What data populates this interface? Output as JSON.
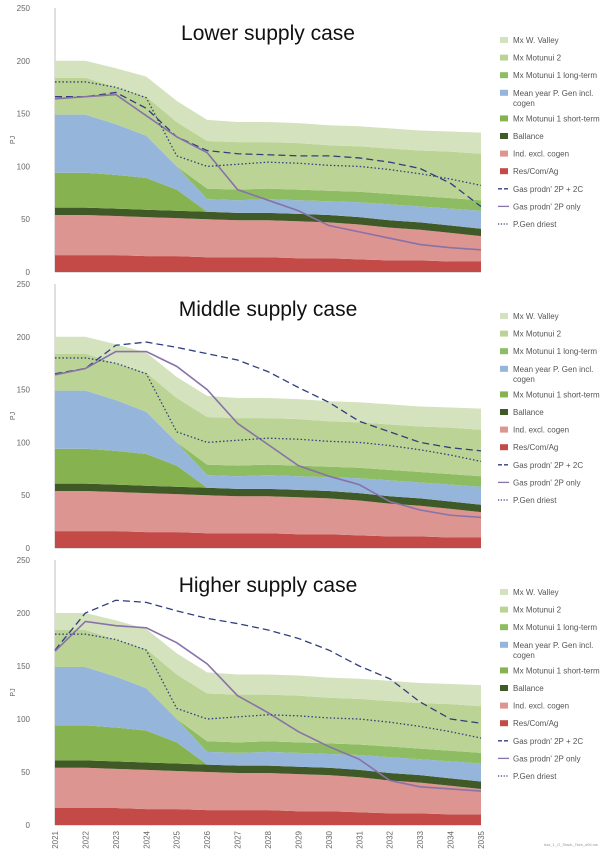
{
  "footnote": "Ass_1_G_Stack_Tsim_s06.ms",
  "colors": {
    "Mx W. Valley": "#d4e2bd",
    "Mx Motunui 2": "#bbd495",
    "Mx Motunui 1 long-term": "#8ebc62",
    "Mean year P. Gen incl. cogen": "#95b5da",
    "Mx Motunui 1 short-term": "#86b34f",
    "Ballance": "#3f5a26",
    "Ind. excl. cogen": "#dc9590",
    "Res/Com/Ag": "#c44a48",
    "Gas prodn' 2P + 2C": "#2f3f7e",
    "Gas prodn' 2P only": "#8872a8",
    "P.Gen driest": "#2f3f7e"
  },
  "legend_labels": {
    "Mx W. Valley": "Mx W. Valley",
    "Mx Motunui 2": "Mx Motunui 2",
    "Mx Motunui 1 long-term": "Mx Motunui 1 long-term",
    "Mean year P. Gen incl. cogen": "Mean year P. Gen incl.\ncogen",
    "Mx Motunui 1 short-term": "Mx Motunui 1 short-term",
    "Ballance": "Ballance",
    "Ind. excl. cogen": "Ind. excl. cogen",
    "Res/Com/Ag": "Res/Com/Ag",
    "Gas prodn' 2P + 2C": "Gas prodn' 2P + 2C",
    "Gas prodn' 2P only": "Gas prodn' 2P only",
    "P.Gen driest": "P.Gen driest"
  },
  "chart_data": [
    {
      "type": "area",
      "title": "Lower supply case",
      "ylabel": "PJ",
      "ylim": [
        0,
        250
      ],
      "yticks": [
        0,
        50,
        100,
        150,
        200,
        250
      ],
      "x": [
        "2021",
        "2022",
        "2023",
        "2024",
        "2025",
        "2026",
        "2027",
        "2028",
        "2029",
        "2030",
        "2031",
        "2032",
        "2033",
        "2034",
        "2035"
      ],
      "stacked_series": [
        {
          "name": "Res/Com/Ag",
          "values": [
            16,
            16,
            16,
            15,
            15,
            14,
            14,
            14,
            13,
            13,
            12,
            11,
            11,
            10,
            10
          ]
        },
        {
          "name": "Ind. excl. cogen",
          "values": [
            38,
            38,
            37,
            37,
            36,
            36,
            35,
            35,
            35,
            34,
            33,
            31,
            29,
            27,
            24
          ]
        },
        {
          "name": "Ballance",
          "values": [
            7,
            7,
            7,
            7,
            7,
            7,
            7,
            7,
            7,
            7,
            7,
            7,
            7,
            7,
            7
          ]
        },
        {
          "name": "Mx Motunui 1 short-term",
          "values": [
            33,
            33,
            32,
            30,
            20,
            0,
            0,
            0,
            0,
            0,
            0,
            0,
            0,
            0,
            0
          ]
        },
        {
          "name": "Mean year P. Gen incl. cogen",
          "values": [
            55,
            55,
            48,
            40,
            22,
            12,
            12,
            13,
            13,
            13,
            14,
            15,
            15,
            16,
            17
          ]
        },
        {
          "name": "Mx Motunui 1 long-term",
          "values": [
            0,
            0,
            0,
            0,
            0,
            10,
            10,
            10,
            10,
            10,
            10,
            10,
            10,
            10,
            10
          ]
        },
        {
          "name": "Mx Motunui 2",
          "values": [
            35,
            35,
            35,
            37,
            42,
            45,
            45,
            44,
            44,
            43,
            43,
            43,
            43,
            44,
            44
          ]
        },
        {
          "name": "Mx W. Valley",
          "values": [
            16,
            16,
            18,
            19,
            20,
            20,
            19,
            19,
            19,
            19,
            19,
            19,
            19,
            19,
            20
          ]
        }
      ],
      "line_series": [
        {
          "name": "Gas prodn' 2P + 2C",
          "dash": "dashed",
          "values": [
            166,
            166,
            170,
            155,
            128,
            115,
            112,
            111,
            110,
            110,
            108,
            104,
            98,
            84,
            62
          ]
        },
        {
          "name": "Gas prodn' 2P only",
          "dash": "solid",
          "values": [
            164,
            166,
            168,
            148,
            128,
            113,
            78,
            68,
            58,
            44,
            38,
            32,
            26,
            23,
            21
          ]
        },
        {
          "name": "P.Gen driest",
          "dash": "dotted",
          "values": [
            180,
            180,
            175,
            165,
            110,
            100,
            102,
            104,
            103,
            101,
            100,
            97,
            93,
            88,
            82
          ]
        }
      ]
    },
    {
      "type": "area",
      "title": "Middle supply case",
      "ylabel": "PJ",
      "ylim": [
        0,
        250
      ],
      "yticks": [
        0,
        50,
        100,
        150,
        200,
        250
      ],
      "x": [
        "2021",
        "2022",
        "2023",
        "2024",
        "2025",
        "2026",
        "2027",
        "2028",
        "2029",
        "2030",
        "2031",
        "2032",
        "2033",
        "2034",
        "2035"
      ],
      "stacked_series": [
        {
          "name": "Res/Com/Ag",
          "values": [
            16,
            16,
            16,
            15,
            15,
            14,
            14,
            14,
            13,
            13,
            12,
            11,
            11,
            10,
            10
          ]
        },
        {
          "name": "Ind. excl. cogen",
          "values": [
            38,
            38,
            37,
            37,
            36,
            36,
            35,
            35,
            35,
            34,
            33,
            31,
            29,
            27,
            24
          ]
        },
        {
          "name": "Ballance",
          "values": [
            7,
            7,
            7,
            7,
            7,
            7,
            7,
            7,
            7,
            7,
            7,
            7,
            7,
            7,
            7
          ]
        },
        {
          "name": "Mx Motunui 1 short-term",
          "values": [
            33,
            33,
            32,
            30,
            20,
            0,
            0,
            0,
            0,
            0,
            0,
            0,
            0,
            0,
            0
          ]
        },
        {
          "name": "Mean year P. Gen incl. cogen",
          "values": [
            55,
            55,
            48,
            40,
            22,
            12,
            12,
            13,
            13,
            13,
            14,
            15,
            15,
            16,
            17
          ]
        },
        {
          "name": "Mx Motunui 1 long-term",
          "values": [
            0,
            0,
            0,
            0,
            0,
            10,
            10,
            10,
            10,
            10,
            10,
            10,
            10,
            10,
            10
          ]
        },
        {
          "name": "Mx Motunui 2",
          "values": [
            35,
            35,
            35,
            37,
            42,
            45,
            45,
            44,
            44,
            43,
            43,
            43,
            43,
            44,
            44
          ]
        },
        {
          "name": "Mx W. Valley",
          "values": [
            16,
            16,
            18,
            19,
            20,
            20,
            19,
            19,
            19,
            19,
            19,
            19,
            19,
            19,
            20
          ]
        }
      ],
      "line_series": [
        {
          "name": "Gas prodn' 2P + 2C",
          "dash": "dashed",
          "values": [
            165,
            170,
            192,
            195,
            190,
            184,
            178,
            167,
            152,
            138,
            120,
            110,
            100,
            95,
            92
          ]
        },
        {
          "name": "Gas prodn' 2P only",
          "dash": "solid",
          "values": [
            164,
            170,
            186,
            186,
            172,
            150,
            118,
            98,
            78,
            68,
            60,
            44,
            36,
            31,
            29
          ]
        },
        {
          "name": "P.Gen driest",
          "dash": "dotted",
          "values": [
            180,
            180,
            175,
            165,
            110,
            100,
            102,
            104,
            103,
            101,
            100,
            97,
            93,
            88,
            82
          ]
        }
      ]
    },
    {
      "type": "area",
      "title": "Higher supply case",
      "ylabel": "PJ",
      "ylim": [
        0,
        250
      ],
      "yticks": [
        0,
        50,
        100,
        150,
        200,
        250
      ],
      "x": [
        "2021",
        "2022",
        "2023",
        "2024",
        "2025",
        "2026",
        "2027",
        "2028",
        "2029",
        "2030",
        "2031",
        "2032",
        "2033",
        "2034",
        "2035"
      ],
      "stacked_series": [
        {
          "name": "Res/Com/Ag",
          "values": [
            16,
            16,
            16,
            15,
            15,
            14,
            14,
            14,
            13,
            13,
            12,
            11,
            11,
            10,
            10
          ]
        },
        {
          "name": "Ind. excl. cogen",
          "values": [
            38,
            38,
            37,
            37,
            36,
            36,
            35,
            35,
            35,
            34,
            33,
            31,
            29,
            27,
            24
          ]
        },
        {
          "name": "Ballance",
          "values": [
            7,
            7,
            7,
            7,
            7,
            7,
            7,
            7,
            7,
            7,
            7,
            7,
            7,
            7,
            7
          ]
        },
        {
          "name": "Mx Motunui 1 short-term",
          "values": [
            33,
            33,
            32,
            30,
            20,
            0,
            0,
            0,
            0,
            0,
            0,
            0,
            0,
            0,
            0
          ]
        },
        {
          "name": "Mean year P. Gen incl. cogen",
          "values": [
            55,
            55,
            48,
            40,
            22,
            12,
            12,
            13,
            13,
            13,
            14,
            15,
            15,
            16,
            17
          ]
        },
        {
          "name": "Mx Motunui 1 long-term",
          "values": [
            0,
            0,
            0,
            0,
            0,
            10,
            10,
            10,
            10,
            10,
            10,
            10,
            10,
            10,
            10
          ]
        },
        {
          "name": "Mx Motunui 2",
          "values": [
            35,
            35,
            35,
            37,
            42,
            45,
            45,
            44,
            44,
            43,
            43,
            43,
            43,
            44,
            44
          ]
        },
        {
          "name": "Mx W. Valley",
          "values": [
            16,
            16,
            18,
            19,
            20,
            20,
            19,
            19,
            19,
            19,
            19,
            19,
            19,
            19,
            20
          ]
        }
      ],
      "line_series": [
        {
          "name": "Gas prodn' 2P + 2C",
          "dash": "dashed",
          "values": [
            165,
            200,
            212,
            210,
            202,
            195,
            190,
            184,
            176,
            165,
            150,
            138,
            116,
            100,
            96
          ]
        },
        {
          "name": "Gas prodn' 2P only",
          "dash": "solid",
          "values": [
            164,
            192,
            188,
            186,
            172,
            152,
            122,
            106,
            88,
            74,
            62,
            42,
            36,
            34,
            32
          ]
        },
        {
          "name": "P.Gen driest",
          "dash": "dotted",
          "values": [
            180,
            180,
            175,
            165,
            110,
            100,
            102,
            104,
            103,
            101,
            100,
            97,
            93,
            88,
            82
          ]
        }
      ]
    }
  ]
}
